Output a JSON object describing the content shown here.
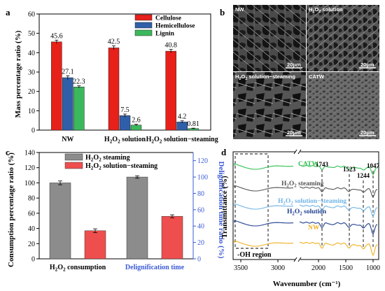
{
  "panel_labels": {
    "a": "a",
    "b": "b",
    "c": "c",
    "d": "d"
  },
  "chart_data": [
    {
      "panel": "a",
      "type": "bar",
      "categories": [
        "NW",
        "H2O2 solution",
        "H2O2 solution−steaming"
      ],
      "category_parts": [
        {
          "pre": "NW",
          "sub": "",
          "mid": "",
          "sub2": "",
          "post": ""
        },
        {
          "pre": "H",
          "sub": "2",
          "mid": "O",
          "sub2": "2",
          "post": " solution"
        },
        {
          "pre": "H",
          "sub": "2",
          "mid": "O",
          "sub2": "2",
          "post": " solution−steaming"
        }
      ],
      "series": [
        {
          "name": "Cellulose",
          "color": "#e8201a",
          "values": [
            45.6,
            42.5,
            40.8
          ],
          "labels": [
            "45.6",
            "42.5",
            "40.8"
          ],
          "err": [
            0.9,
            1.0,
            0.9
          ]
        },
        {
          "name": "Hemicellulose",
          "color": "#2f5fa9",
          "values": [
            27.1,
            7.5,
            4.2
          ],
          "labels": [
            "27.1",
            "7.5",
            "4.2"
          ],
          "err": [
            1.0,
            0.8,
            0.6
          ]
        },
        {
          "name": "Lignin",
          "color": "#3cb85c",
          "values": [
            22.3,
            2.6,
            0.81
          ],
          "labels": [
            "22.3",
            "2.6",
            "0.81"
          ],
          "err": [
            0.6,
            0.4,
            0.2
          ]
        }
      ],
      "ylabel": "Mass percentage ratio (%)",
      "ylim": [
        0,
        60
      ],
      "yticks": [
        0,
        10,
        20,
        30,
        40,
        50,
        60
      ],
      "legend": "top-right"
    },
    {
      "panel": "c",
      "type": "bar",
      "groups": [
        {
          "pre": "H",
          "sub": "2",
          "mid": "O",
          "sub2": "2",
          "post": " consumption",
          "color": "#000000",
          "axis": "left"
        },
        {
          "pre": "Delignification time",
          "sub": "",
          "mid": "",
          "sub2": "",
          "post": "",
          "color": "#3b5bd6",
          "axis": "right"
        }
      ],
      "series": [
        {
          "name": "H2O2 steaming",
          "name_parts": {
            "pre": "H",
            "sub": "2",
            "mid": "O",
            "sub2": "2",
            "post": " steaming"
          },
          "color": "#8c8c8c",
          "values_left": [
            100
          ],
          "values_right": [
            100
          ],
          "err": [
            2.5,
            1.5
          ]
        },
        {
          "name": "H2O2 solution−steaming",
          "name_parts": {
            "pre": "H",
            "sub": "2",
            "mid": "O",
            "sub2": "2",
            "post": " solution−steaming"
          },
          "color": "#ef4e4e",
          "values_left": [
            37
          ],
          "values_right": [
            52
          ],
          "err": [
            2.5,
            1.8
          ]
        }
      ],
      "ylabel_left": "Consumption percentage ratio (%)",
      "ylabel_right": "Delignification time ratio (%)",
      "ylim_left": [
        0,
        140
      ],
      "yticks_left": [
        0,
        20,
        40,
        60,
        80,
        100,
        120,
        140
      ],
      "ylim_right": [
        0,
        130
      ],
      "yticks_right": [
        0,
        20,
        40,
        60,
        80,
        100,
        120
      ],
      "legend": "top-left"
    },
    {
      "panel": "d",
      "type": "line",
      "xlabel": "Wavenumber (cm⁻¹)",
      "ylabel": "Transmittance (%)",
      "xticks_left": [
        "3500",
        "3000"
      ],
      "xticks_right": [
        "2000",
        "1500",
        "1000"
      ],
      "peaks": [
        "1743",
        "1523",
        "1244",
        "1047"
      ],
      "region_label": "-OH region",
      "series": [
        {
          "name": "CATW",
          "name_parts": {
            "pre": "CATW",
            "sub": "",
            "mid": "",
            "sub2": "",
            "post": ""
          },
          "color": "#2fbf4f"
        },
        {
          "name": "H2O2 steaming",
          "name_parts": {
            "pre": "H",
            "sub": "2",
            "mid": "O",
            "sub2": "2",
            "post": " steaming"
          },
          "color": "#555555"
        },
        {
          "name": "H2O2 solution−steaming",
          "name_parts": {
            "pre": "H",
            "sub": "2",
            "mid": "O",
            "sub2": "2",
            "post": " solution−steaming"
          },
          "color": "#6fb4e6"
        },
        {
          "name": "H2O2 solution",
          "name_parts": {
            "pre": "H",
            "sub": "2",
            "mid": "O",
            "sub2": "2",
            "post": " solution"
          },
          "color": "#1f3f8f"
        },
        {
          "name": "NW",
          "name_parts": {
            "pre": "NW",
            "sub": "",
            "mid": "",
            "sub2": "",
            "post": ""
          },
          "color": "#f0b020"
        }
      ]
    }
  ],
  "sem_panels": [
    {
      "label": "NW",
      "scale": "20μm"
    },
    {
      "label_parts": {
        "pre": "H",
        "sub": "2",
        "mid": "O",
        "sub2": "2",
        "post": " solution"
      },
      "label": "H2O2 solution",
      "scale": "20μm"
    },
    {
      "label_parts": {
        "pre": "H",
        "sub": "2",
        "mid": "O",
        "sub2": "2",
        "post": " solution−steaming"
      },
      "label": "H2O2 solution−steaming",
      "scale": "20μm"
    },
    {
      "label": "CATW",
      "scale": "20μm"
    }
  ]
}
